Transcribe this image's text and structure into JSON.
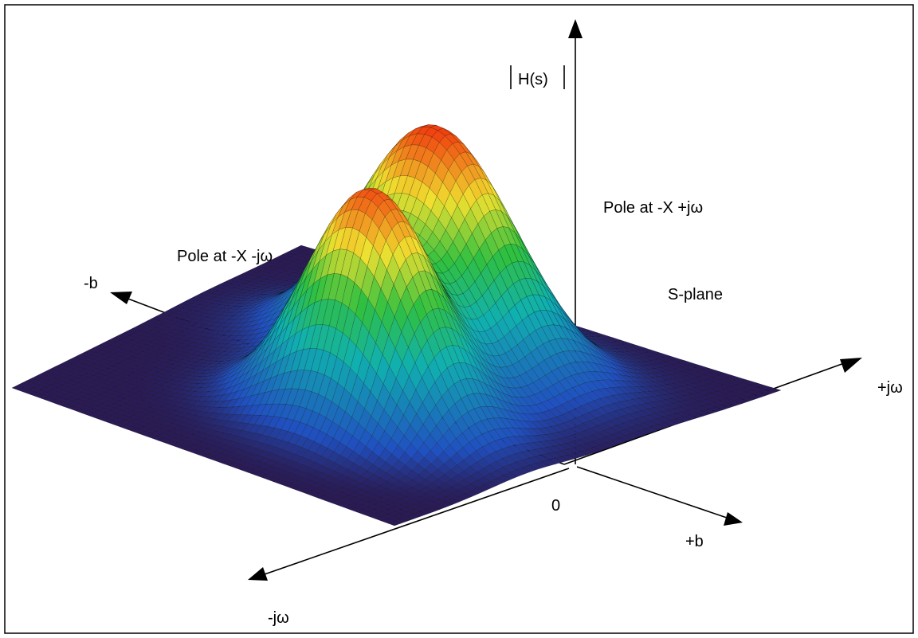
{
  "labels": {
    "magnitude": "H(s)",
    "pole_upper": "Pole at -X +jω",
    "pole_lower": "Pole at -X -jω",
    "minus_b": "-b",
    "plus_b": "+b",
    "plus_jw": "+jω",
    "minus_jw": "-jω",
    "origin": "0",
    "plane": "S-plane"
  },
  "colors": {
    "surface_low": "#2a1a55",
    "surface_mid_blue": "#2050c0",
    "surface_cyan": "#10b0b0",
    "surface_green": "#30c040",
    "surface_yellow": "#f0e030",
    "surface_peak": "#f04010",
    "mesh_line": "#000000"
  }
}
